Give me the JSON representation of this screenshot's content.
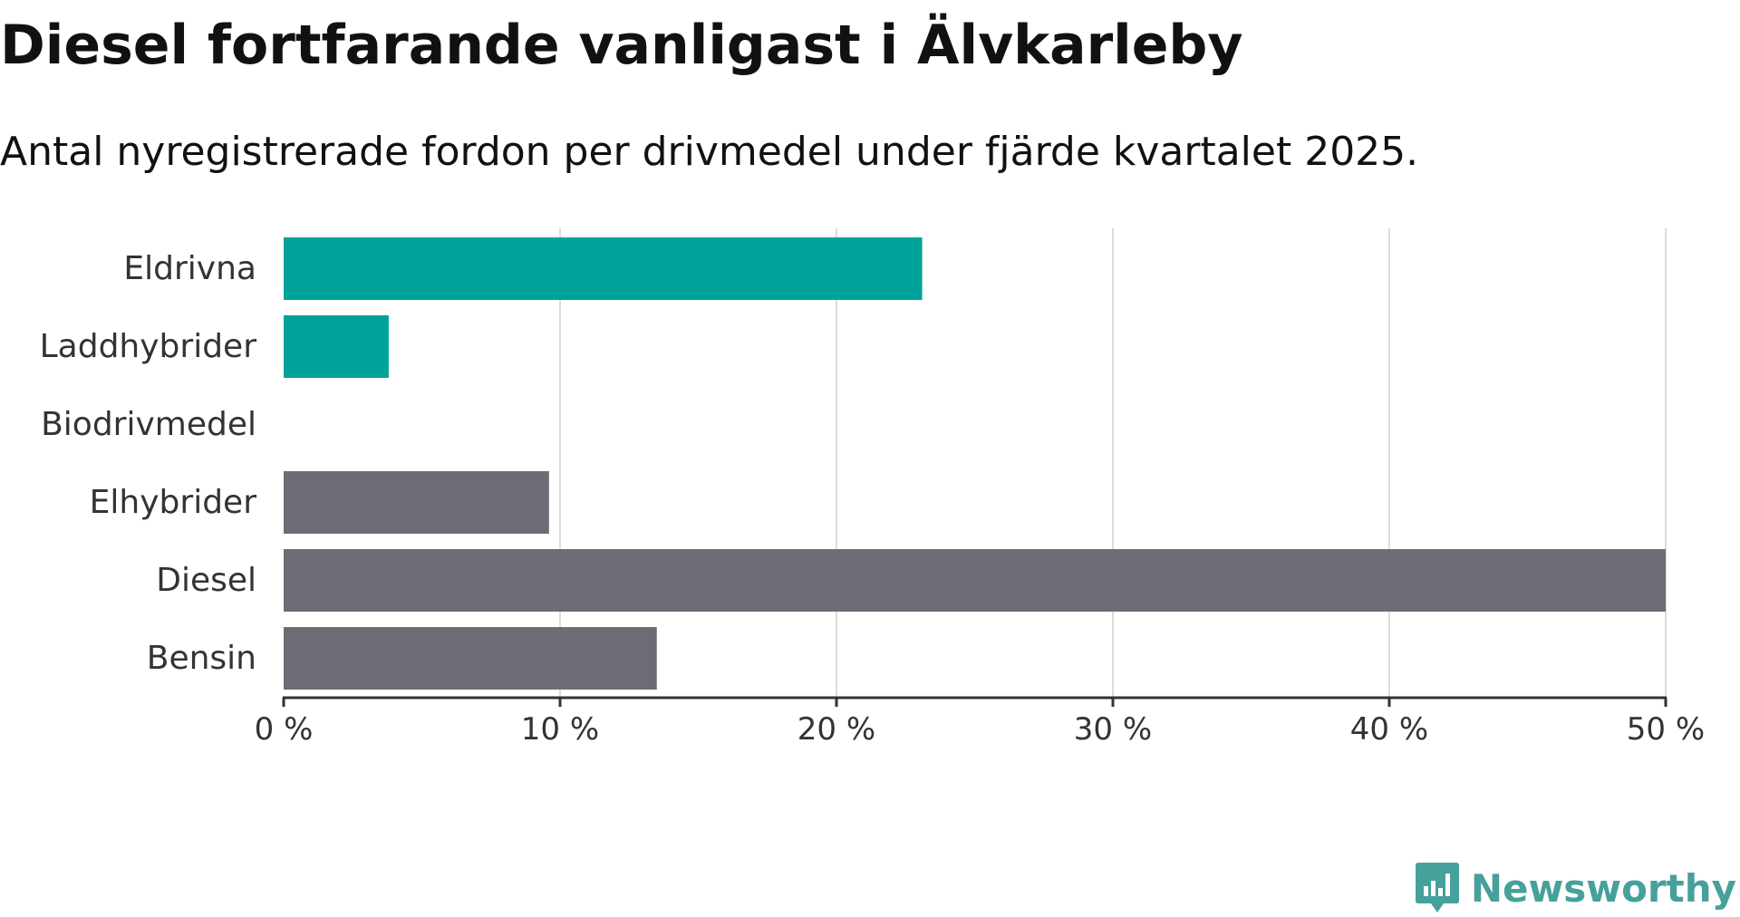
{
  "chart_data": {
    "type": "bar",
    "orientation": "horizontal",
    "title": "Diesel fortfarande vanligast i Älvkarleby",
    "subtitle": "Antal nyregistrerade fordon per drivmedel under fjärde kvartalet 2025.",
    "categories": [
      "Eldrivna",
      "Laddhybrider",
      "Biodrivmedel",
      "Elhybrider",
      "Diesel",
      "Bensin"
    ],
    "values": [
      23.1,
      3.8,
      0,
      9.6,
      50.0,
      13.5
    ],
    "colors": [
      "#00a39a",
      "#00a39a",
      "#00a39a",
      "#6d6c74",
      "#6d6c74",
      "#6d6c74"
    ],
    "xlim": [
      0,
      50
    ],
    "x_ticks": [
      0,
      10,
      20,
      30,
      40,
      50
    ],
    "x_tick_labels": [
      "0 %",
      "10 %",
      "20 %",
      "30 %",
      "40 %",
      "50 %"
    ],
    "xlabel": "",
    "ylabel": "",
    "grid": true,
    "legend": "none"
  },
  "branding": {
    "logo_label": "Newsworthy",
    "logo_color": "#46a09b"
  }
}
